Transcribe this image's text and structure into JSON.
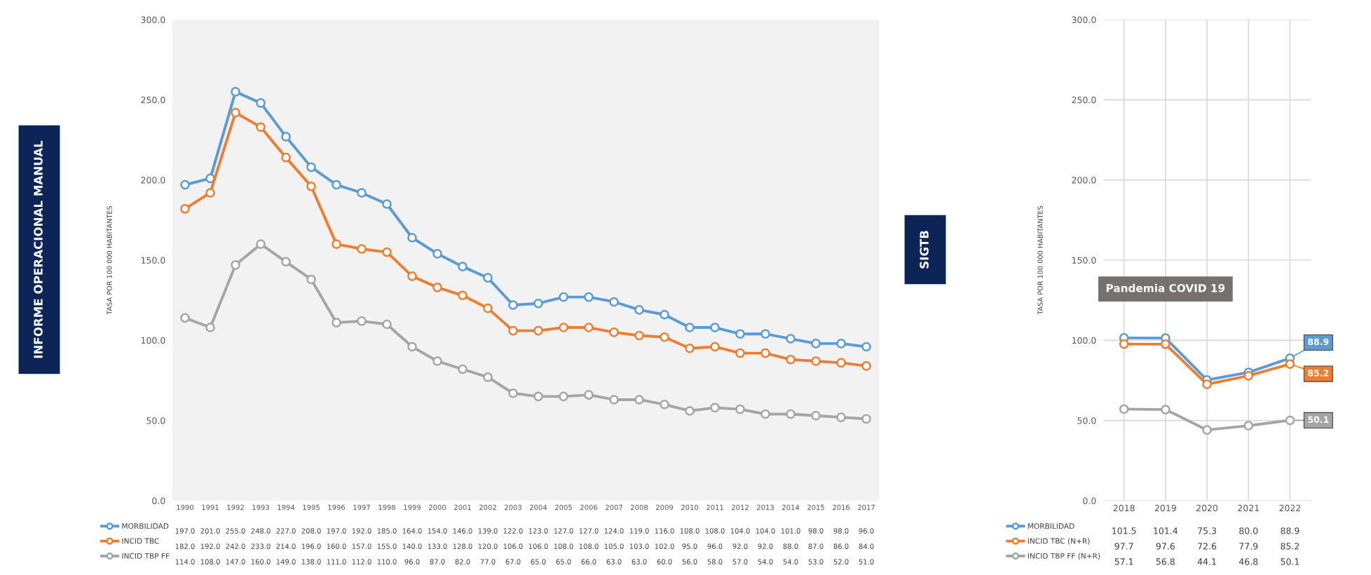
{
  "chart_data": [
    {
      "type": "line",
      "annotations": [
        "INFORME OPERACIONAL MANUAL"
      ],
      "ylabel": "TASA POR 100 000 HABITANTES",
      "categories": [
        "1990",
        "1991",
        "1992",
        "1993",
        "1994",
        "1995",
        "1996",
        "1997",
        "1998",
        "1999",
        "2000",
        "2001",
        "2002",
        "2003",
        "2004",
        "2005",
        "2006",
        "2007",
        "2008",
        "2009",
        "2010",
        "2011",
        "2012",
        "2013",
        "2014",
        "2015",
        "2016",
        "2017"
      ],
      "series": [
        {
          "name": "MORBILIDAD",
          "color": "#5b9bd5",
          "values": [
            197,
            201,
            255,
            248,
            227,
            208,
            197,
            192,
            185,
            164,
            154,
            146,
            139,
            122,
            123,
            127,
            127,
            124,
            119,
            116,
            108,
            108,
            104,
            104,
            101,
            98,
            98,
            96
          ],
          "value_labels": [
            "197.0",
            "201.0",
            "255.0",
            "248.0",
            "227.0",
            "208.0",
            "197.0",
            "192.0",
            "185.0",
            "164.0",
            "154.0",
            "146.0",
            "139.0",
            "122.0",
            "123.0",
            "127.0",
            "127.0",
            "124.0",
            "119.0",
            "116.0",
            "108.0",
            "108.0",
            "104.0",
            "104.0",
            "101.0",
            "98.0",
            "98.0",
            "96.0"
          ]
        },
        {
          "name": "INCID TBC",
          "color": "#ed7d31",
          "values": [
            182,
            192,
            242,
            233,
            214,
            196,
            160,
            157,
            155,
            140,
            133,
            128,
            120,
            106,
            106,
            108,
            108,
            105,
            103,
            102,
            95,
            96,
            92,
            92,
            88,
            87,
            86,
            84
          ],
          "value_labels": [
            "182.0",
            "192.0",
            "242.0",
            "233.0",
            "214.0",
            "196.0",
            "160.0",
            "157.0",
            "155.0",
            "140.0",
            "133.0",
            "128.0",
            "120.0",
            "106.0",
            "106.0",
            "108.0",
            "108.0",
            "105.0",
            "103.0",
            "102.0",
            "95.0",
            "96.0",
            "92.0",
            "92.0",
            "88.0",
            "87.0",
            "86.0",
            "84.0"
          ]
        },
        {
          "name": "INCID TBP FF",
          "color": "#a5a5a5",
          "values": [
            114,
            108,
            147,
            160,
            149,
            138,
            111,
            112,
            110,
            96,
            87,
            82,
            77,
            67,
            65,
            65,
            66,
            63,
            63,
            60,
            56,
            58,
            57,
            54,
            54,
            53,
            52,
            51
          ],
          "value_labels": [
            "114.0",
            "108.0",
            "147.0",
            "160.0",
            "149.0",
            "138.0",
            "111.0",
            "112.0",
            "110.0",
            "96.0",
            "87.0",
            "82.0",
            "77.0",
            "67.0",
            "65.0",
            "65.0",
            "66.0",
            "63.0",
            "63.0",
            "60.0",
            "56.0",
            "58.0",
            "57.0",
            "54.0",
            "54.0",
            "53.0",
            "52.0",
            "51.0"
          ]
        }
      ],
      "ylim": [
        0,
        300
      ],
      "yticks": [
        {
          "value": 0,
          "label": "0.0"
        },
        {
          "value": 50,
          "label": "50.0"
        },
        {
          "value": 100,
          "label": "100.0"
        },
        {
          "value": 150,
          "label": "150.0"
        },
        {
          "value": 200,
          "label": "200.0"
        },
        {
          "value": 250,
          "label": "250.0"
        },
        {
          "value": 300,
          "label": "300.0"
        }
      ],
      "marker": "circle",
      "line_style": "solid",
      "grid": false,
      "legend": "bottom"
    },
    {
      "type": "line",
      "ylabel": "TASA POR 100 000 HABITANTES",
      "categories": [
        "2018",
        "2019",
        "2020",
        "2021",
        "2022"
      ],
      "series": [
        {
          "name": "MORBILIDAD",
          "color": "#5b9bd5",
          "values": [
            101.5,
            101.4,
            75.3,
            80.0,
            88.9
          ],
          "value_labels": [
            "101.5",
            "101.4",
            "75.3",
            "80.0",
            "88.9"
          ]
        },
        {
          "name": "INCID TBC (N+R)",
          "color": "#ed7d31",
          "values": [
            97.7,
            97.6,
            72.6,
            77.9,
            85.2
          ],
          "value_labels": [
            "97.7",
            "97.6",
            "72.6",
            "77.9",
            "85.2"
          ]
        },
        {
          "name": "INCID TBP FF (N+R)",
          "color": "#a5a5a5",
          "values": [
            57.1,
            56.8,
            44.1,
            46.8,
            50.1
          ],
          "value_labels": [
            "57.1",
            "56.8",
            "44.1",
            "46.8",
            "50.1"
          ]
        }
      ],
      "ylim": [
        0,
        300
      ],
      "yticks": [
        {
          "value": 0,
          "label": "0.0"
        },
        {
          "value": 50,
          "label": "50.0"
        },
        {
          "value": 100,
          "label": "100.0"
        },
        {
          "value": 150,
          "label": "150.0"
        },
        {
          "value": 200,
          "label": "200.0"
        },
        {
          "value": 250,
          "label": "250.0"
        },
        {
          "value": 300,
          "label": "300.0"
        }
      ],
      "annotations": [
        "SIGTB",
        "Pandemia COVID 19",
        {
          "text": "88.9",
          "x": "2022",
          "y": 88.9
        },
        {
          "text": "85.2",
          "x": "2022",
          "y": 85.2
        },
        {
          "text": "50.1",
          "x": "2022",
          "y": 50.1
        }
      ],
      "marker": "circle",
      "line_style": "solid",
      "grid": true,
      "legend": "bottom"
    }
  ]
}
